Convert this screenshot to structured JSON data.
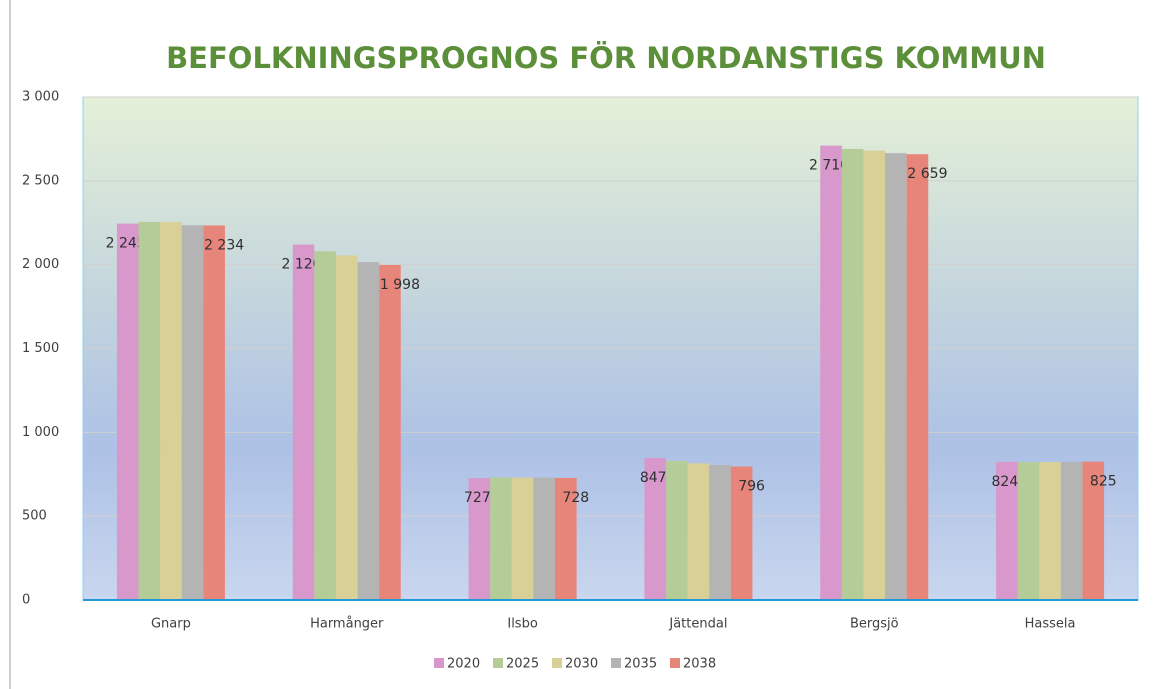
{
  "chart_data": {
    "type": "bar",
    "title": "BEFOLKNINGSPROGNOS FÖR NORDANSTIGS KOMMUN",
    "categories": [
      "Gnarp",
      "Harmånger",
      "Ilsbo",
      "Jättendal",
      "Bergsjö",
      "Hassela"
    ],
    "series": [
      {
        "name": "2020",
        "color": "#d898cc",
        "values": [
          2245,
          2120,
          727,
          847,
          2710,
          824
        ],
        "value_labels": [
          "2 245",
          "2 120",
          "727",
          "847",
          "2 710",
          "824"
        ]
      },
      {
        "name": "2025",
        "color": "#b5cc98",
        "values": [
          2255,
          2080,
          730,
          830,
          2690,
          823
        ]
      },
      {
        "name": "2030",
        "color": "#d8d096",
        "values": [
          2255,
          2055,
          730,
          815,
          2680,
          823
        ]
      },
      {
        "name": "2035",
        "color": "#b4b4b4",
        "values": [
          2235,
          2015,
          730,
          805,
          2665,
          824
        ]
      },
      {
        "name": "2038",
        "color": "#e8857a",
        "values": [
          2234,
          1998,
          728,
          796,
          2659,
          825
        ],
        "value_labels": [
          "2 234",
          "1 998",
          "728",
          "796",
          "2 659",
          "825"
        ]
      }
    ],
    "ylim": [
      0,
      3000
    ],
    "yticks": [
      0,
      500,
      {
        "value": 1000,
        "label": "1 000"
      },
      {
        "value": 1500,
        "label": "1 500"
      },
      {
        "value": 2000,
        "label": "2 000"
      },
      {
        "value": 2500,
        "label": "2 500"
      },
      {
        "value": 3000,
        "label": "3 000"
      }
    ],
    "grid": true,
    "legend": "bottom"
  }
}
